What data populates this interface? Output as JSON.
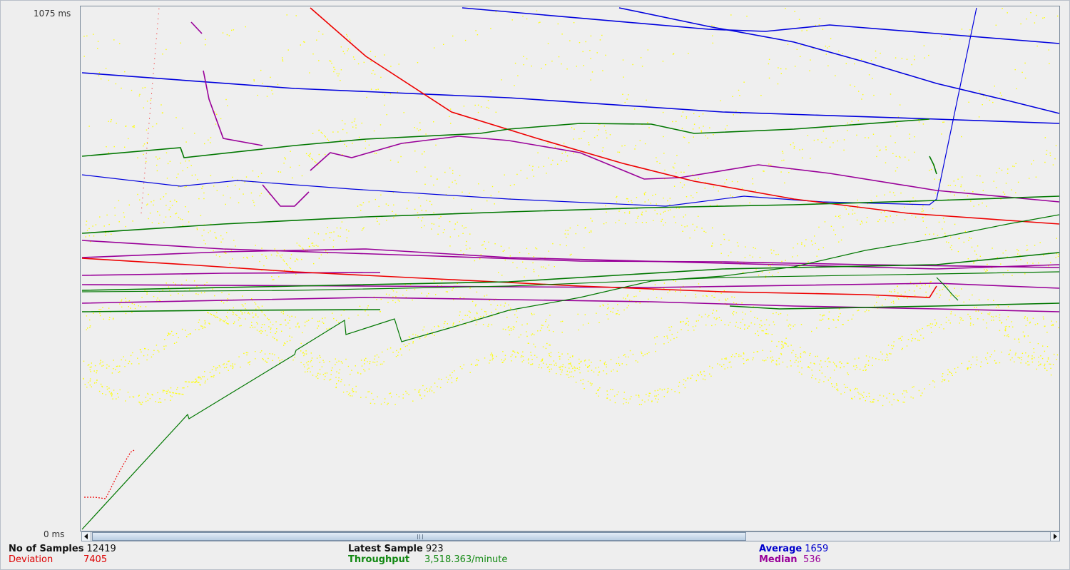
{
  "axis": {
    "y_max_label": "1075  ms",
    "y_min_label": "0  ms"
  },
  "stats": {
    "samples": {
      "label": "No of Samples",
      "value": "12419",
      "color": "#111111"
    },
    "deviation": {
      "label": "Deviation",
      "value": "7405",
      "color": "#dd0000"
    },
    "latest": {
      "label": "Latest Sample",
      "value": "923",
      "color": "#111111"
    },
    "throughput": {
      "label": "Throughput",
      "value": "3,518.363/minute",
      "color": "#118811"
    },
    "average": {
      "label": "Average",
      "value": "1659",
      "color": "#0000cc"
    },
    "median": {
      "label": "Median",
      "value": "536",
      "color": "#990099"
    }
  },
  "colors": {
    "data": "#ffff00",
    "average": "#0000dd",
    "median": "#990099",
    "deviation": "#ee0000",
    "throughput": "#007700"
  },
  "icons": {
    "scroll_left": "triangle-left-icon",
    "scroll_right": "triangle-right-icon"
  }
}
